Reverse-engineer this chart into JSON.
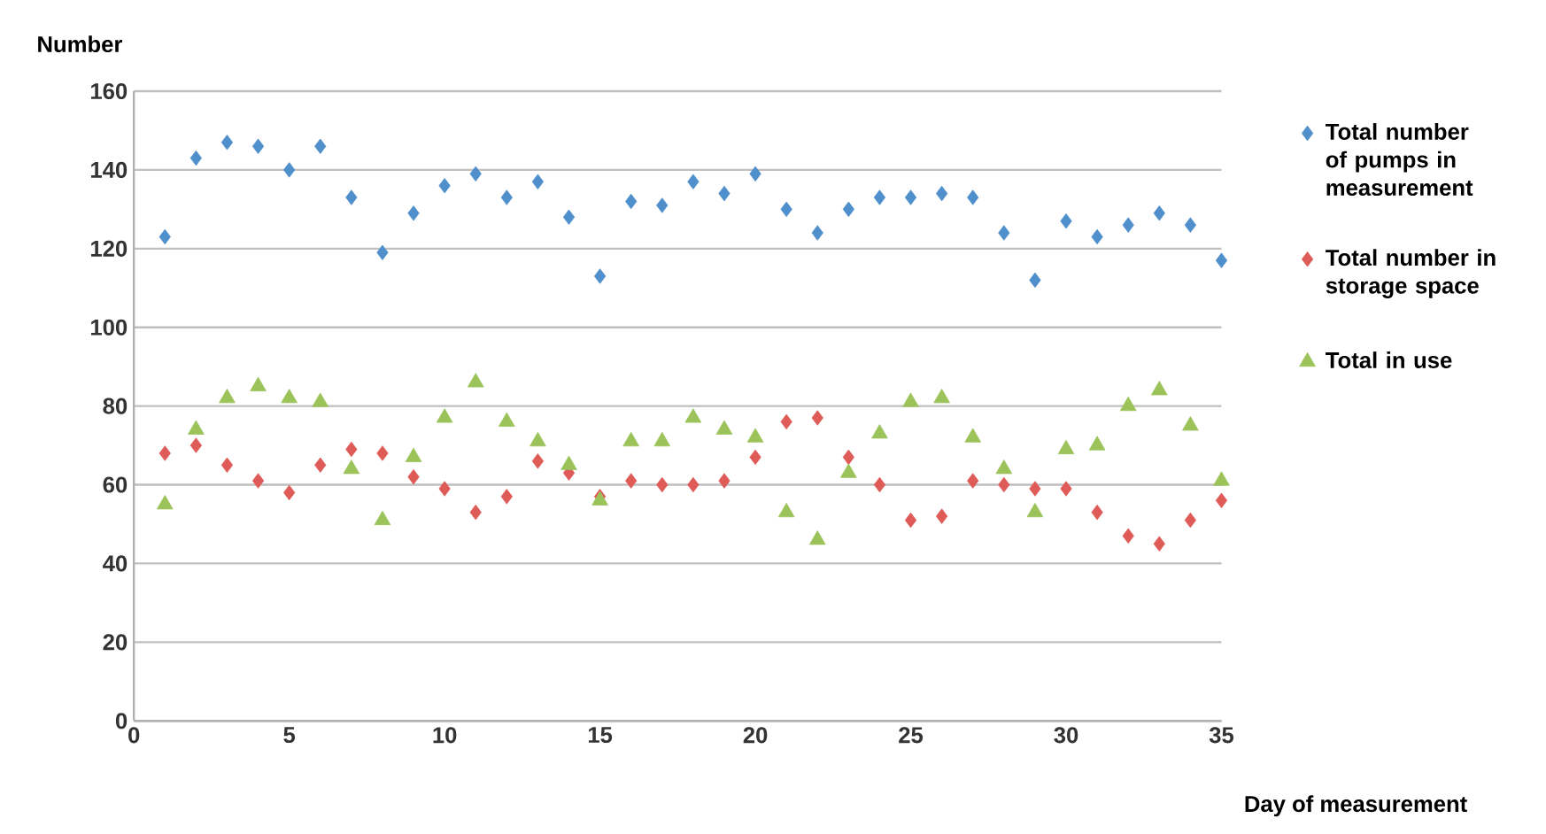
{
  "chart_data": {
    "type": "scatter",
    "xlabel": "Day of measurement",
    "ylabel": "Number",
    "x": [
      1,
      2,
      3,
      4,
      5,
      6,
      7,
      8,
      9,
      10,
      11,
      12,
      13,
      14,
      15,
      16,
      17,
      18,
      19,
      20,
      21,
      22,
      23,
      24,
      25,
      26,
      27,
      28,
      29,
      30,
      31,
      32,
      33,
      34,
      35
    ],
    "series": [
      {
        "name": "Total number of pumps in measurement",
        "color": "#4f8fcb",
        "marker": "diamond",
        "values": [
          123,
          143,
          147,
          146,
          140,
          146,
          133,
          119,
          129,
          136,
          139,
          133,
          137,
          128,
          113,
          132,
          131,
          137,
          134,
          139,
          130,
          124,
          130,
          133,
          133,
          134,
          133,
          124,
          112,
          127,
          123,
          126,
          129,
          126,
          117
        ]
      },
      {
        "name": "Total number in storage space",
        "color": "#de5b57",
        "marker": "diamond",
        "values": [
          68,
          70,
          65,
          61,
          58,
          65,
          69,
          68,
          62,
          59,
          53,
          57,
          66,
          63,
          57,
          61,
          60,
          60,
          61,
          67,
          76,
          77,
          67,
          60,
          51,
          52,
          61,
          60,
          59,
          59,
          53,
          47,
          45,
          51,
          56
        ]
      },
      {
        "name": "Total in use",
        "color": "#9bc35a",
        "marker": "triangle",
        "values": [
          55,
          74,
          82,
          85,
          82,
          81,
          64,
          51,
          67,
          77,
          86,
          76,
          71,
          65,
          56,
          71,
          71,
          77,
          74,
          72,
          53,
          46,
          63,
          73,
          81,
          82,
          72,
          64,
          53,
          69,
          70,
          80,
          84,
          75,
          61
        ]
      }
    ],
    "xlim": [
      0,
      35
    ],
    "xticks": [
      0,
      5,
      10,
      15,
      20,
      25,
      30,
      35
    ],
    "ylim": [
      0,
      160
    ],
    "yticks": [
      0,
      20,
      40,
      60,
      80,
      100,
      120,
      140,
      160
    ],
    "grid": "y",
    "legend": "right"
  }
}
